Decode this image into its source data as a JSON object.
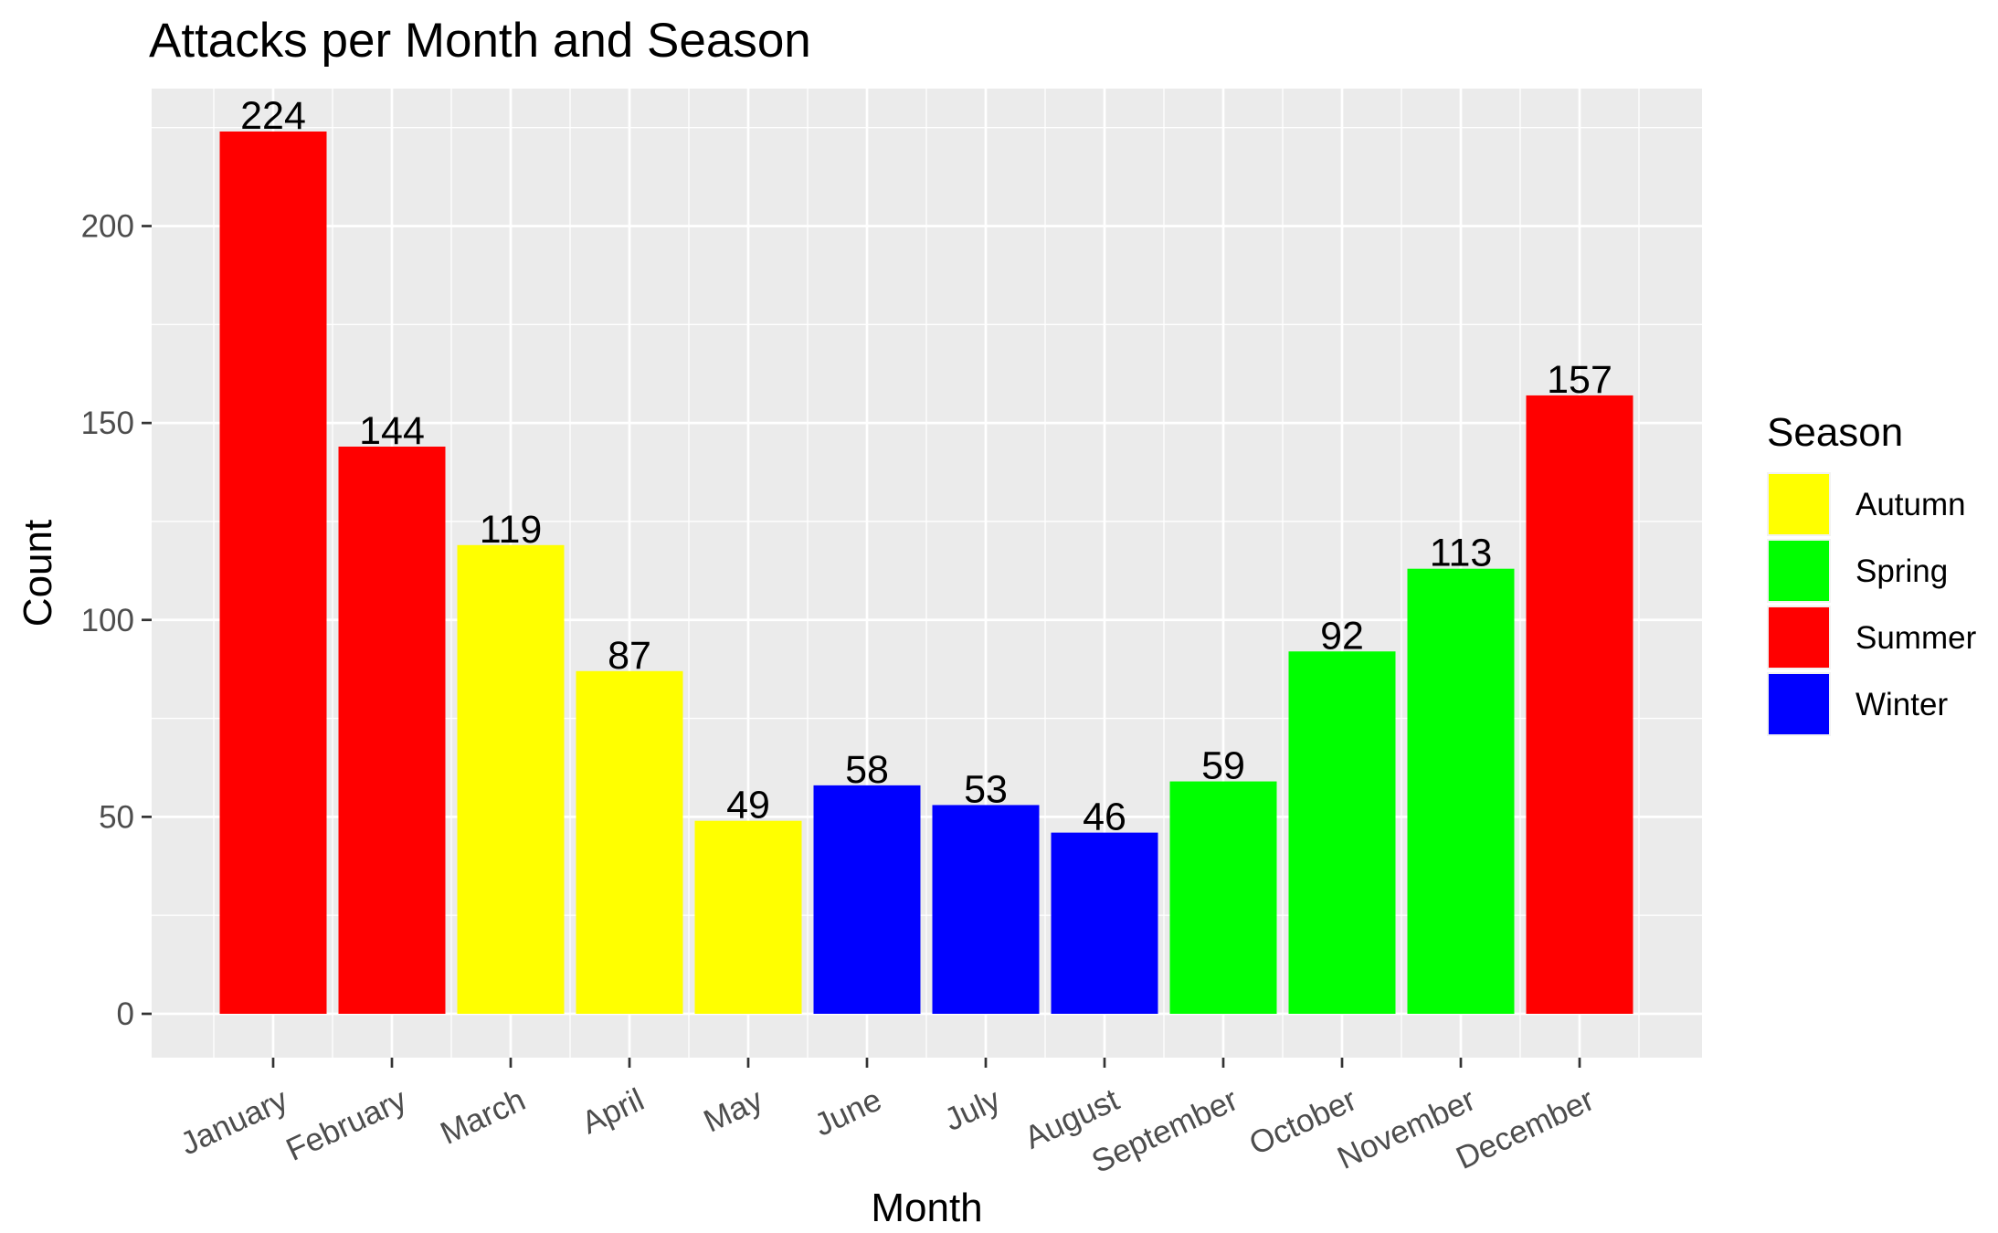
{
  "chart_data": {
    "type": "bar",
    "title": "Attacks per Month and Season",
    "xlabel": "Month",
    "ylabel": "Count",
    "categories": [
      "January",
      "February",
      "March",
      "April",
      "May",
      "June",
      "July",
      "August",
      "September",
      "October",
      "November",
      "December"
    ],
    "values": [
      224,
      144,
      119,
      87,
      49,
      58,
      53,
      46,
      59,
      92,
      113,
      157
    ],
    "season": [
      "Summer",
      "Summer",
      "Autumn",
      "Autumn",
      "Autumn",
      "Winter",
      "Winter",
      "Winter",
      "Spring",
      "Spring",
      "Spring",
      "Summer"
    ],
    "ylim": [
      0,
      235
    ],
    "yticks": [
      0,
      50,
      100,
      150,
      200
    ],
    "grid": true,
    "legend": {
      "title": "Season",
      "position": "right",
      "entries": [
        {
          "name": "Autumn",
          "color": "#ffff00"
        },
        {
          "name": "Spring",
          "color": "#00ff00"
        },
        {
          "name": "Summer",
          "color": "#ff0000"
        },
        {
          "name": "Winter",
          "color": "#0000ff"
        }
      ]
    },
    "colors": {
      "panel_background": "#ebebeb",
      "grid": "#ffffff"
    }
  }
}
